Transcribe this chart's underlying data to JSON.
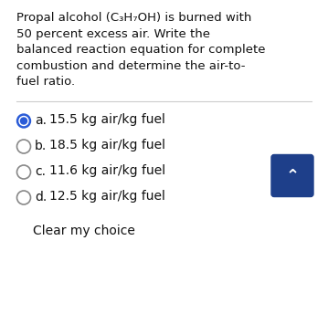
{
  "bg_color": "#f0f0f0",
  "white_panel_color": "#ffffff",
  "question_lines": [
    "Propal alcohol (C₃H₇OH) is burned with",
    "50 percent excess air. Write the",
    "balanced reaction equation for complete",
    "combustion and determine the air-to-",
    "fuel ratio."
  ],
  "options": [
    {
      "label": "a.",
      "text": "15.5 kg air/kg fuel",
      "selected": true
    },
    {
      "label": "b.",
      "text": "18.5 kg air/kg fuel",
      "selected": false
    },
    {
      "label": "c.",
      "text": "11.6 kg air/kg fuel",
      "selected": false
    },
    {
      "label": "d.",
      "text": "12.5 kg air/kg fuel",
      "selected": false
    }
  ],
  "clear_text": "Clear my choice",
  "radio_selected_color": "#2a5bd7",
  "radio_unselected_color": "#888888",
  "button_color": "#1e3f8a",
  "text_color": "#111111",
  "divider_color": "#cccccc",
  "font_size_question": 9.5,
  "font_size_options": 10.0,
  "font_size_clear": 10.0
}
